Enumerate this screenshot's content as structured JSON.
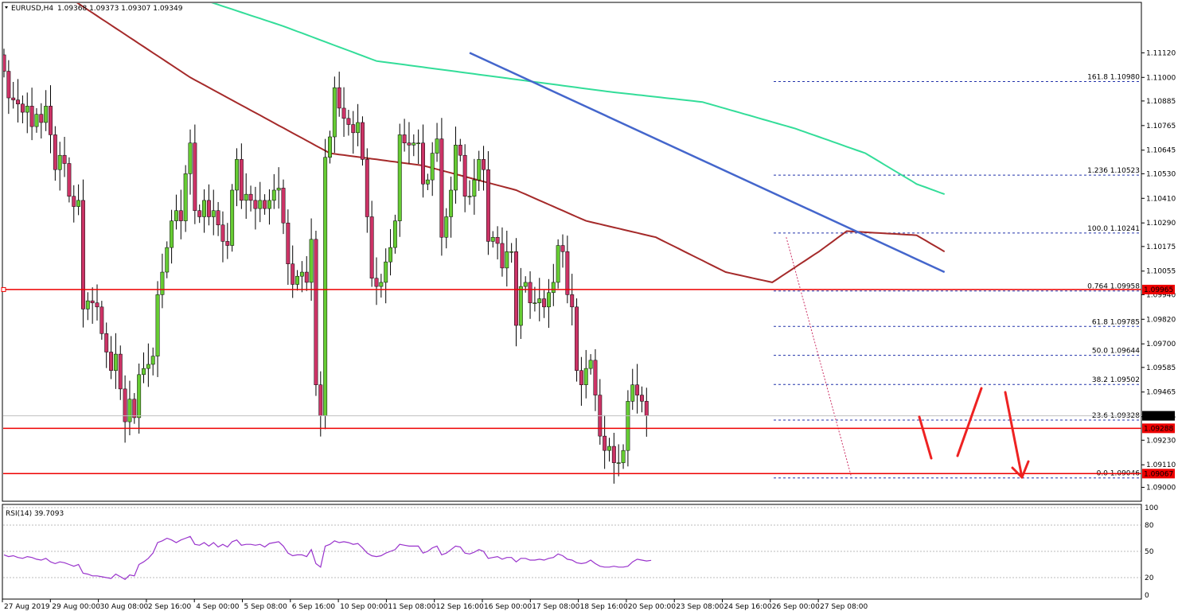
{
  "header": {
    "symbol": "EURUSD,H4",
    "ohlc": "1.09368 1.09373 1.09307 1.09349"
  },
  "rsi_label": "RSI(14) 39.7093",
  "colors": {
    "bull": "#66cc33",
    "bear": "#cc3366",
    "wick": "#000000",
    "ma_red": "#a52a2a",
    "ma_green": "#33dd99",
    "trendline": "#4466cc",
    "hline": "#ee0000",
    "fib": "#2233aa",
    "rsi_line": "#9933cc",
    "arrow": "#ee2222"
  },
  "chart_data": [
    {
      "type": "candlestick",
      "title": "EURUSD,H4",
      "ylim": [
        1.0894,
        1.113
      ],
      "y_ticks": [
        "1.11120",
        "1.11000",
        "1.10885",
        "1.10765",
        "1.10645",
        "1.10530",
        "1.10410",
        "1.10290",
        "1.10175",
        "1.10055",
        "1.09940",
        "1.09820",
        "1.09700",
        "1.09585",
        "1.09465",
        "1.09345",
        "1.09230",
        "1.09110",
        "1.09000"
      ],
      "x_ticks": [
        "27 Aug 2019",
        "29 Aug 00:00",
        "30 Aug 08:00",
        "2 Sep 16:00",
        "4 Sep 00:00",
        "5 Sep 08:00",
        "6 Sep 16:00",
        "10 Sep 00:00",
        "11 Sep 08:00",
        "12 Sep 16:00",
        "16 Sep 00:00",
        "17 Sep 08:00",
        "18 Sep 16:00",
        "20 Sep 00:00",
        "23 Sep 08:00",
        "24 Sep 16:00",
        "26 Sep 00:00",
        "27 Sep 08:00"
      ],
      "closes": [
        1.1103,
        1.109,
        1.1089,
        1.1087,
        1.1083,
        1.1086,
        1.1076,
        1.1082,
        1.1078,
        1.1086,
        1.1072,
        1.1055,
        1.1062,
        1.1058,
        1.1042,
        1.1037,
        1.104,
        1.0987,
        1.0991,
        1.099,
        1.0988,
        1.0975,
        1.0966,
        1.0957,
        1.0965,
        1.0948,
        1.0932,
        1.0943,
        1.0934,
        1.0955,
        1.0958,
        1.096,
        1.0964,
        1.0994,
        1.1005,
        1.1017,
        1.103,
        1.1035,
        1.103,
        1.1053,
        1.1068,
        1.1035,
        1.1032,
        1.104,
        1.1032,
        1.1035,
        1.1028,
        1.102,
        1.1018,
        1.1045,
        1.106,
        1.104,
        1.1043,
        1.104,
        1.1036,
        1.104,
        1.1036,
        1.104,
        1.1045,
        1.1046,
        1.1029,
        1.1009,
        1.0999,
        1.1003,
        1.1005,
        1.1,
        1.1021,
        1.095,
        1.0935,
        1.1061,
        1.1071,
        1.1095,
        1.1085,
        1.108,
        1.1077,
        1.1073,
        1.1078,
        1.106,
        1.1032,
        1.1002,
        1.0998,
        1.1,
        1.101,
        1.1017,
        1.103,
        1.1072,
        1.1068,
        1.1067,
        1.1068,
        1.1068,
        1.1048,
        1.105,
        1.1063,
        1.107,
        1.1022,
        1.1032,
        1.1045,
        1.1067,
        1.1062,
        1.1042,
        1.1042,
        1.105,
        1.106,
        1.1055,
        1.102,
        1.1022,
        1.1019,
        1.1007,
        1.1015,
        1.1015,
        1.0979,
        1.0998,
        1.1,
        1.099,
        1.099,
        1.0992,
        1.0988,
        1.0995,
        1.1,
        1.1018,
        1.1015,
        1.0994,
        1.0988,
        1.0957,
        1.095,
        1.0958,
        1.0962,
        1.0945,
        1.0925,
        1.0918,
        1.092,
        1.0912,
        1.0912,
        1.0918,
        1.0942,
        1.095,
        1.0945,
        1.0942,
        1.09349
      ],
      "fib_levels": [
        {
          "label": "161.8",
          "value": "1.10980"
        },
        {
          "label": "1.236",
          "value": "1.10523"
        },
        {
          "label": "100.0",
          "value": "1.10241"
        },
        {
          "label": "0.764",
          "value": "1.09958"
        },
        {
          "label": "61.8",
          "value": "1.09785"
        },
        {
          "label": "50.0",
          "value": "1.09644"
        },
        {
          "label": "38.2",
          "value": "1.09502"
        },
        {
          "label": "23.6",
          "value": "1.09328"
        },
        {
          "label": "0.0",
          "value": "1.09046"
        }
      ],
      "horizontal_lines": [
        {
          "value": 1.09965,
          "label": "1.09965"
        },
        {
          "value": 1.09288,
          "label": "1.09288"
        },
        {
          "value": 1.09067,
          "label": "1.09067"
        }
      ],
      "current_price": {
        "value": 1.09349,
        "label": "1.09349"
      },
      "trendline": {
        "from_index": 100,
        "from_value": 1.1112,
        "to_index": 202,
        "to_value": 1.1005
      },
      "ma_red_anchors": [
        [
          0,
          1.116
        ],
        [
          40,
          1.11
        ],
        [
          70,
          1.1063
        ],
        [
          90,
          1.1057
        ],
        [
          110,
          1.1045
        ],
        [
          125,
          1.103
        ],
        [
          140,
          1.1022
        ],
        [
          155,
          1.1005
        ],
        [
          165,
          1.1
        ],
        [
          175,
          1.1015
        ],
        [
          181,
          1.1025
        ],
        [
          196,
          1.1023
        ],
        [
          202,
          1.1015
        ]
      ],
      "ma_green_anchors": [
        [
          0,
          1.117
        ],
        [
          60,
          1.1125
        ],
        [
          80,
          1.1108
        ],
        [
          100,
          1.1102
        ],
        [
          130,
          1.1093
        ],
        [
          150,
          1.1088
        ],
        [
          170,
          1.1075
        ],
        [
          185,
          1.1063
        ],
        [
          196,
          1.1048
        ],
        [
          202,
          1.1043
        ]
      ]
    },
    {
      "type": "line",
      "title": "RSI(14) 39.7093",
      "ylim": [
        0,
        100
      ],
      "y_ticks": [
        "100",
        "80",
        "50",
        "20",
        "0"
      ],
      "values": [
        46,
        44,
        45,
        43,
        42,
        44,
        43,
        41,
        40,
        42,
        38,
        36,
        38,
        37,
        35,
        33,
        35,
        25,
        24,
        22,
        22,
        21,
        20,
        19,
        24,
        21,
        18,
        23,
        22,
        35,
        38,
        42,
        48,
        60,
        62,
        65,
        63,
        60,
        63,
        65,
        67,
        58,
        57,
        60,
        56,
        60,
        55,
        58,
        55,
        61,
        63,
        57,
        58,
        58,
        57,
        58,
        55,
        59,
        60,
        61,
        56,
        48,
        45,
        46,
        46,
        44,
        52,
        36,
        32,
        56,
        58,
        62,
        60,
        61,
        60,
        58,
        59,
        54,
        48,
        45,
        44,
        45,
        48,
        50,
        52,
        58,
        57,
        56,
        56,
        56,
        48,
        50,
        54,
        56,
        46,
        48,
        52,
        56,
        55,
        48,
        47,
        49,
        52,
        50,
        42,
        43,
        44,
        41,
        43,
        43,
        38,
        42,
        42,
        40,
        40,
        41,
        40,
        42,
        43,
        47,
        45,
        41,
        40,
        37,
        36,
        37,
        40,
        36,
        33,
        32,
        32,
        33,
        32,
        32,
        33,
        38,
        41,
        40,
        39,
        39.7
      ]
    }
  ]
}
